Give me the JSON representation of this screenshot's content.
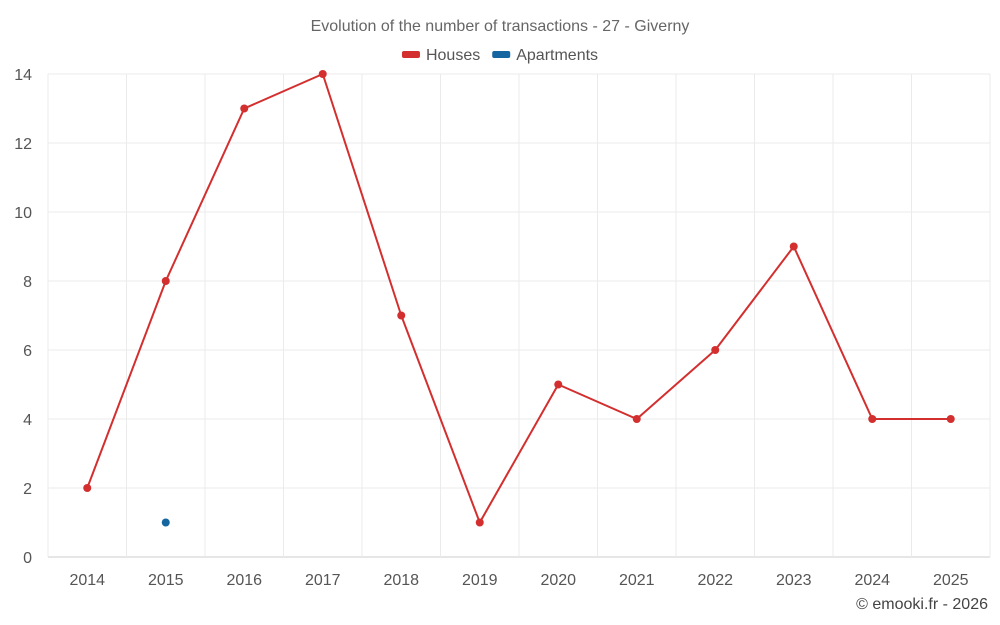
{
  "chart_data": {
    "type": "line",
    "title": "Evolution of the number of transactions - 27 - Giverny",
    "xlabel": "",
    "ylabel": "",
    "categories": [
      "2014",
      "2015",
      "2016",
      "2017",
      "2018",
      "2019",
      "2020",
      "2021",
      "2022",
      "2023",
      "2024",
      "2025"
    ],
    "ylim": [
      0,
      14
    ],
    "yticks": [
      0,
      2,
      4,
      6,
      8,
      10,
      12,
      14
    ],
    "grid": true,
    "legend_position": "top-center",
    "series": [
      {
        "name": "Houses",
        "color": "#d32f2f",
        "values": [
          2,
          8,
          13,
          14,
          7,
          1,
          5,
          4,
          6,
          9,
          4,
          4
        ]
      },
      {
        "name": "Apartments",
        "color": "#1565a0",
        "values": [
          null,
          1,
          null,
          null,
          null,
          null,
          null,
          null,
          null,
          null,
          null,
          null
        ]
      }
    ]
  },
  "credit": "© emooki.fr - 2026"
}
